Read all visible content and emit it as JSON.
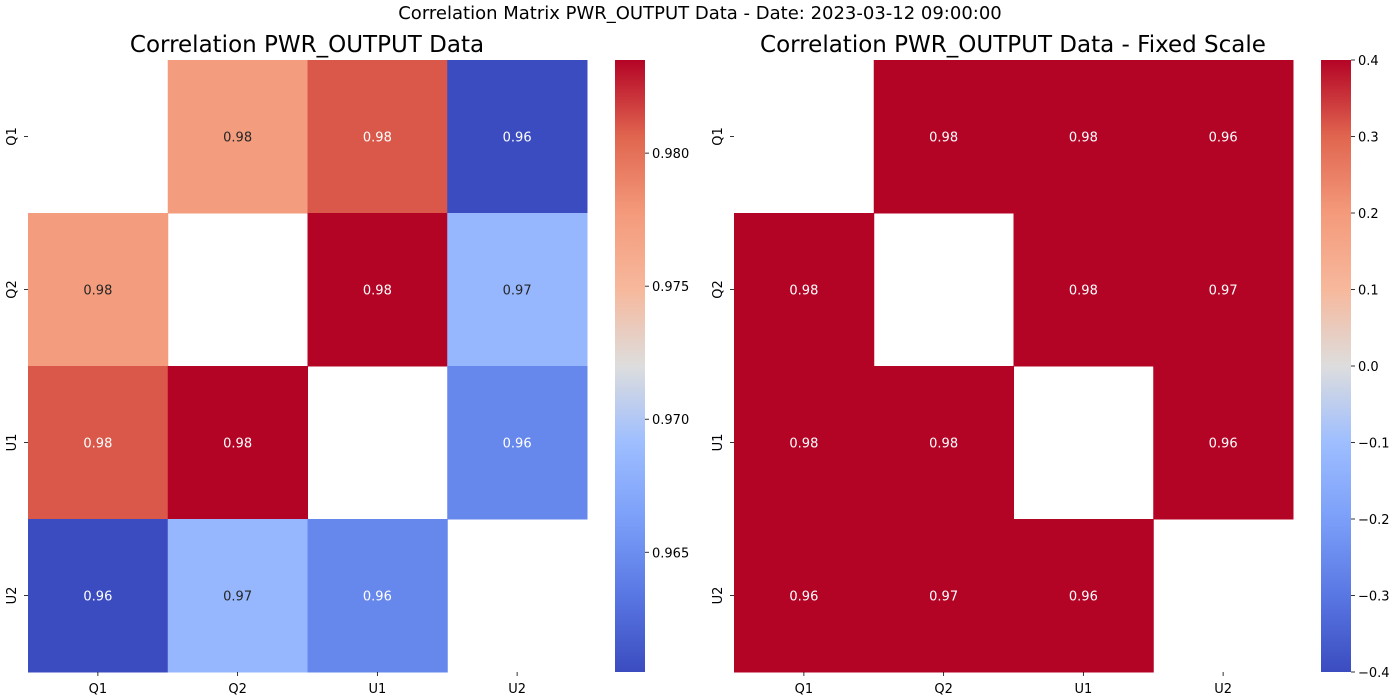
{
  "suptitle": "Correlation Matrix PWR_OUTPUT Data - Date: 2023-03-12 09:00:00",
  "chart_data": [
    {
      "type": "heatmap",
      "title": "Correlation PWR_OUTPUT Data",
      "x_labels": [
        "Q1",
        "Q2",
        "U1",
        "U2"
      ],
      "y_labels": [
        "Q1",
        "Q2",
        "U1",
        "U2"
      ],
      "values": [
        [
          null,
          0.9775,
          0.981,
          0.9605
        ],
        [
          0.9775,
          null,
          0.9835,
          0.9685
        ],
        [
          0.981,
          0.9835,
          null,
          0.9645
        ],
        [
          0.9605,
          0.9685,
          0.9645,
          null
        ]
      ],
      "annotations": [
        [
          "",
          "0.98",
          "0.98",
          "0.96"
        ],
        [
          "0.98",
          "",
          "0.98",
          "0.97"
        ],
        [
          "0.98",
          "0.98",
          "",
          "0.96"
        ],
        [
          "0.96",
          "0.97",
          "0.96",
          ""
        ]
      ],
      "colormap": "coolwarm",
      "vmin": 0.9605,
      "vmax": 0.9835,
      "colorbar_ticks": [
        0.965,
        0.97,
        0.975,
        0.98
      ],
      "colorbar_tick_labels": [
        "0.965",
        "0.970",
        "0.975",
        "0.980"
      ]
    },
    {
      "type": "heatmap",
      "title": "Correlation PWR_OUTPUT Data - Fixed Scale",
      "x_labels": [
        "Q1",
        "Q2",
        "U1",
        "U2"
      ],
      "y_labels": [
        "Q1",
        "Q2",
        "U1",
        "U2"
      ],
      "values": [
        [
          null,
          0.9775,
          0.981,
          0.9605
        ],
        [
          0.9775,
          null,
          0.9835,
          0.9685
        ],
        [
          0.981,
          0.9835,
          null,
          0.9645
        ],
        [
          0.9605,
          0.9685,
          0.9645,
          null
        ]
      ],
      "annotations": [
        [
          "",
          "0.98",
          "0.98",
          "0.96"
        ],
        [
          "0.98",
          "",
          "0.98",
          "0.97"
        ],
        [
          "0.98",
          "0.98",
          "",
          "0.96"
        ],
        [
          "0.96",
          "0.97",
          "0.96",
          ""
        ]
      ],
      "colormap": "coolwarm",
      "vmin": -0.4,
      "vmax": 0.4,
      "colorbar_ticks": [
        -0.4,
        -0.3,
        -0.2,
        -0.1,
        0.0,
        0.1,
        0.2,
        0.3,
        0.4
      ],
      "colorbar_tick_labels": [
        "−0.4",
        "−0.3",
        "−0.2",
        "−0.1",
        "0.0",
        "0.1",
        "0.2",
        "0.3",
        "0.4"
      ]
    }
  ]
}
